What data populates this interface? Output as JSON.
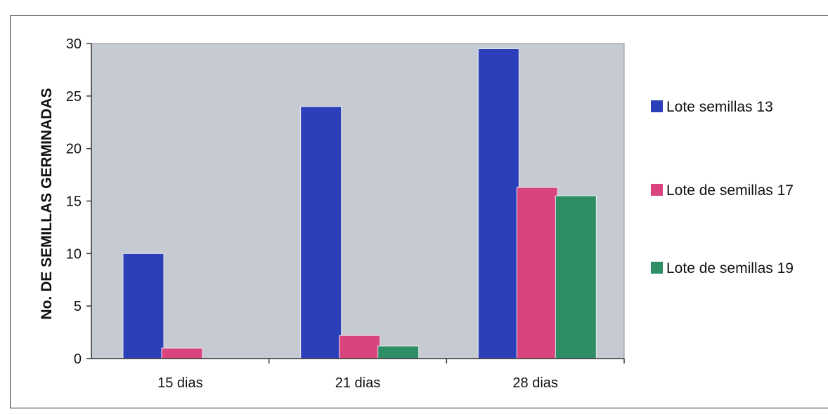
{
  "chart_data": {
    "type": "bar",
    "title": "",
    "xlabel": "",
    "ylabel": "No. DE SEMILLAS GERMINADAS",
    "categories": [
      "15 dias",
      "21 dias",
      "28 dias"
    ],
    "series": [
      {
        "name": "Lote semillas 13",
        "values": [
          10,
          24,
          29.5
        ],
        "color": "#2b3fb8"
      },
      {
        "name": "Lote de semillas 17",
        "values": [
          1,
          2.2,
          16.3
        ],
        "color": "#d9447e"
      },
      {
        "name": "Lote de semillas 19",
        "values": [
          0,
          1.2,
          15.5
        ],
        "color": "#2e8f67"
      }
    ],
    "ylim": [
      0,
      30
    ],
    "yticks": [
      "0",
      "5",
      "10",
      "15",
      "20",
      "25",
      "30"
    ],
    "grid": false,
    "legend_position": "right",
    "plot_background": "#c6cad3"
  }
}
